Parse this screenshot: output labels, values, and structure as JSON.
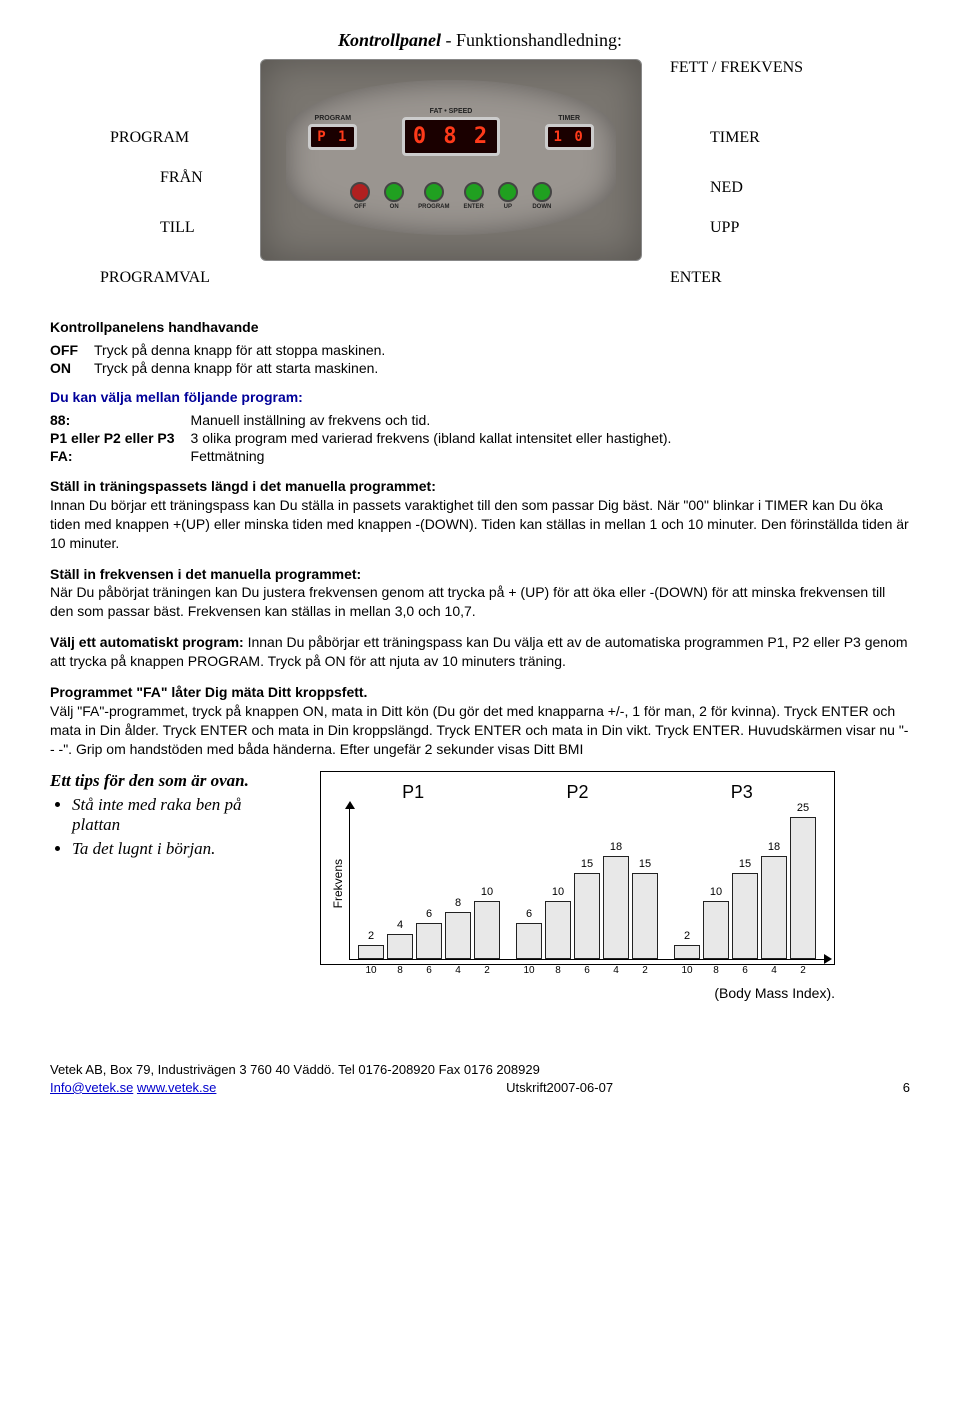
{
  "title": {
    "main": "Kontrollpanel",
    "sep": " - ",
    "sub": "Funktionshandledning:"
  },
  "panel": {
    "displays": {
      "program": {
        "label": "PROGRAM",
        "value": "P 1"
      },
      "fatspeed": {
        "label": "FAT • SPEED",
        "value": "0 8 2"
      },
      "timer": {
        "label": "TIMER",
        "value": "1 0"
      }
    },
    "buttons": [
      {
        "label": "OFF",
        "color": "#b02020"
      },
      {
        "label": "ON",
        "color": "#20a020"
      },
      {
        "label": "PROGRAM",
        "color": "#20a020"
      },
      {
        "label": "ENTER",
        "color": "#20a020"
      },
      {
        "label": "UP",
        "color": "#20a020"
      },
      {
        "label": "DOWN",
        "color": "#20a020"
      }
    ],
    "callouts": {
      "fett": "FETT / FREKVENS",
      "program": "PROGRAM",
      "fran": "FRÅN",
      "till": "TILL",
      "programval": "PROGRAMVAL",
      "timer": "TIMER",
      "ned": "NED",
      "upp": "UPP",
      "enter": "ENTER"
    }
  },
  "handling": {
    "heading": "Kontrollpanelens handhavande",
    "rows": [
      {
        "k": "OFF",
        "v": "Tryck på denna knapp för att stoppa maskinen."
      },
      {
        "k": "ON",
        "v": "Tryck på denna knapp för att starta maskinen."
      }
    ]
  },
  "programs": {
    "heading": "Du kan välja mellan följande program:",
    "rows": [
      {
        "k": "88:",
        "v": "Manuell inställning av frekvens och tid."
      },
      {
        "k": "P1 eller P2 eller P3",
        "v": "3 olika program med varierad frekvens (ibland kallat intensitet eller hastighet)."
      },
      {
        "k": "FA:",
        "v": "Fettmätning"
      }
    ]
  },
  "p_manual_len": {
    "h": "Ställ in träningspassets längd i det manuella programmet:",
    "t": "Innan Du börjar ett träningspass kan Du ställa in passets varaktighet till den som passar Dig bäst. När \"00\" blinkar i TIMER kan Du öka tiden med knappen +(UP) eller minska tiden med knappen -(DOWN). Tiden kan ställas in mellan 1 och 10 minuter. Den förinställda tiden är 10 minuter."
  },
  "p_manual_freq": {
    "h": "Ställ in frekvensen i det manuella programmet:",
    "t": "När Du påbörjat träningen kan Du justera frekvensen genom att trycka på + (UP) för att öka eller -(DOWN) för att minska frekvensen till den som passar bäst. Frekvensen kan ställas in mellan 3,0 och 10,7."
  },
  "p_auto": "Innan Du påbörjar ett träningspass kan Du välja ett av de automatiska programmen P1, P2 eller P3 genom att trycka på knappen PROGRAM. Tryck på ON för att njuta av 10 minuters träning.",
  "p_auto_h": "Välj ett automatiskt program:",
  "p_fa": {
    "h": "Programmet \"FA\" låter Dig mäta Ditt kroppsfett.",
    "t": "Välj \"FA\"-programmet, tryck på knappen ON, mata in Ditt kön (Du gör det med knapparna +/-, 1 för man, 2 för kvinna). Tryck ENTER och mata in Din ålder. Tryck ENTER och mata in Din kroppslängd. Tryck ENTER och mata in Din vikt. Tryck ENTER. Huvudskärmen visar nu \"- - -\". Grip om handstöden med båda händerna. Efter ungefär 2 sekunder visas Ditt BMI"
  },
  "tips": {
    "h": "Ett tips för den som är ovan.",
    "items": [
      "Stå inte med raka ben på plattan",
      "Ta det lugnt i början."
    ]
  },
  "chart": {
    "ylabel": "Frekvens",
    "headers": [
      "P1",
      "P2",
      "P3"
    ],
    "ymax": 25,
    "programs": [
      {
        "x": [
          10,
          8,
          6,
          4,
          2
        ],
        "y": [
          2,
          4,
          6,
          8,
          10
        ]
      },
      {
        "x": [
          10,
          8,
          6,
          4,
          2
        ],
        "y": [
          6,
          10,
          15,
          18,
          15
        ]
      },
      {
        "x": [
          10,
          8,
          6,
          4,
          2
        ],
        "y": [
          2,
          10,
          15,
          18,
          25
        ]
      }
    ],
    "bar_fill": "#e8e8e8",
    "bar_border": "#222"
  },
  "bmi_note": "(Body Mass Index).",
  "footer": {
    "line1": "Vetek AB, Box 79, Industrivägen 3 760 40 Väddö. Tel 0176-208920 Fax 0176 208929",
    "email": "Info@vetek.se",
    "web": "www.vetek.se",
    "print": "Utskrift2007-06-07",
    "page": "6"
  }
}
